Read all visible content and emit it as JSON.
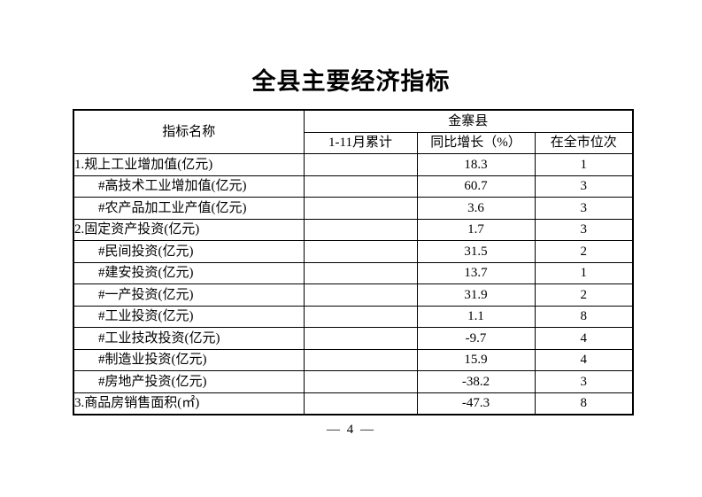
{
  "page": {
    "title": "全县主要经济指标",
    "footer_page_label": "— 4 —"
  },
  "table": {
    "header": {
      "indicator": "指标名称",
      "county_group": "金寨县",
      "cumulative": "1-11月累计",
      "growth": "同比增长（%）",
      "rank": "在全市位次"
    },
    "rows": [
      {
        "label": "1.规上工业增加值(亿元)",
        "cumulative": "",
        "growth": "18.3",
        "rank": "1"
      },
      {
        "label": "#高技术工业增加值(亿元)",
        "cumulative": "",
        "growth": "60.7",
        "rank": "3"
      },
      {
        "label": "#农产品加工业产值(亿元)",
        "cumulative": "",
        "growth": "3.6",
        "rank": "3"
      },
      {
        "label": "2.固定资产投资(亿元)",
        "cumulative": "",
        "growth": "1.7",
        "rank": "3"
      },
      {
        "label": "#民间投资(亿元)",
        "cumulative": "",
        "growth": "31.5",
        "rank": "2"
      },
      {
        "label": "#建安投资(亿元)",
        "cumulative": "",
        "growth": "13.7",
        "rank": "1"
      },
      {
        "label": "#一产投资(亿元)",
        "cumulative": "",
        "growth": "31.9",
        "rank": "2"
      },
      {
        "label": "#工业投资(亿元)",
        "cumulative": "",
        "growth": "1.1",
        "rank": "8"
      },
      {
        "label": "#工业技改投资(亿元)",
        "cumulative": "",
        "growth": "-9.7",
        "rank": "4"
      },
      {
        "label": "#制造业投资(亿元)",
        "cumulative": "",
        "growth": "15.9",
        "rank": "4"
      },
      {
        "label": "#房地产投资(亿元)",
        "cumulative": "",
        "growth": "-38.2",
        "rank": "3"
      },
      {
        "label": "3.商品房销售面积(㎡)",
        "cumulative": "",
        "growth": "-47.3",
        "rank": "8"
      }
    ]
  }
}
